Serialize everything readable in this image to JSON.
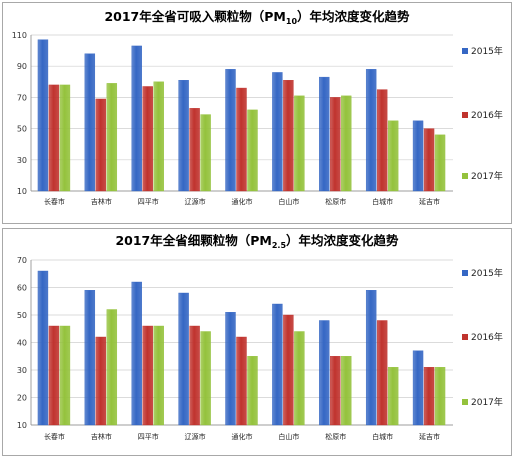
{
  "chart_data": [
    {
      "type": "bar",
      "title": "2017年全省可吸入颗粒物（PM",
      "title_sub": "10",
      "title_after": "）年均浓度变化趋势",
      "categories": [
        "长春市",
        "吉林市",
        "四平市",
        "辽源市",
        "通化市",
        "白山市",
        "松原市",
        "白城市",
        "延吉市"
      ],
      "series": [
        {
          "name": "2015年",
          "color": "#3567c4",
          "values": [
            107,
            98,
            103,
            81,
            88,
            86,
            83,
            88,
            55
          ]
        },
        {
          "name": "2016年",
          "color": "#c0332e",
          "values": [
            78,
            69,
            77,
            63,
            76,
            81,
            70,
            75,
            50
          ]
        },
        {
          "name": "2017年",
          "color": "#94c23c",
          "values": [
            78,
            79,
            80,
            59,
            62,
            71,
            71,
            55,
            46
          ]
        }
      ],
      "ylim": [
        10,
        110
      ],
      "yticks": [
        "10",
        "30",
        "50",
        "70",
        "90",
        "110"
      ],
      "grid": true,
      "legend": "right"
    },
    {
      "type": "bar",
      "title": "2017年全省细颗粒物（PM",
      "title_sub": "2.5",
      "title_after": "）年均浓度变化趋势",
      "categories": [
        "长春市",
        "吉林市",
        "四平市",
        "辽源市",
        "通化市",
        "白山市",
        "松原市",
        "白城市",
        "延吉市"
      ],
      "series": [
        {
          "name": "2015年",
          "color": "#3567c4",
          "values": [
            66,
            59,
            62,
            58,
            51,
            54,
            48,
            59,
            37
          ]
        },
        {
          "name": "2016年",
          "color": "#c0332e",
          "values": [
            46,
            42,
            46,
            46,
            42,
            50,
            35,
            48,
            31
          ]
        },
        {
          "name": "2017年",
          "color": "#94c23c",
          "values": [
            46,
            52,
            46,
            44,
            35,
            44,
            35,
            31,
            31
          ]
        }
      ],
      "ylim": [
        10,
        70
      ],
      "yticks": [
        "10",
        "20",
        "30",
        "40",
        "50",
        "60",
        "70"
      ],
      "grid": true,
      "legend": "right"
    }
  ]
}
